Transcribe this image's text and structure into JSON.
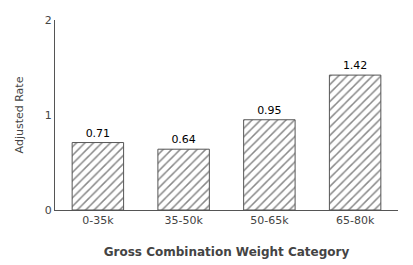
{
  "chart_data": {
    "type": "bar",
    "categories": [
      "0-35k",
      "35-50k",
      "50-65k",
      "65-80k"
    ],
    "values": [
      0.71,
      0.64,
      0.95,
      1.42
    ],
    "color": "#e8e8e8",
    "xlabel": "Gross Combination Weight Category",
    "ylabel": "Adjusted Rate",
    "ylim": [
      0,
      2.0
    ],
    "yticks": [
      0,
      1,
      2
    ],
    "grid": false,
    "data_labels": true
  }
}
